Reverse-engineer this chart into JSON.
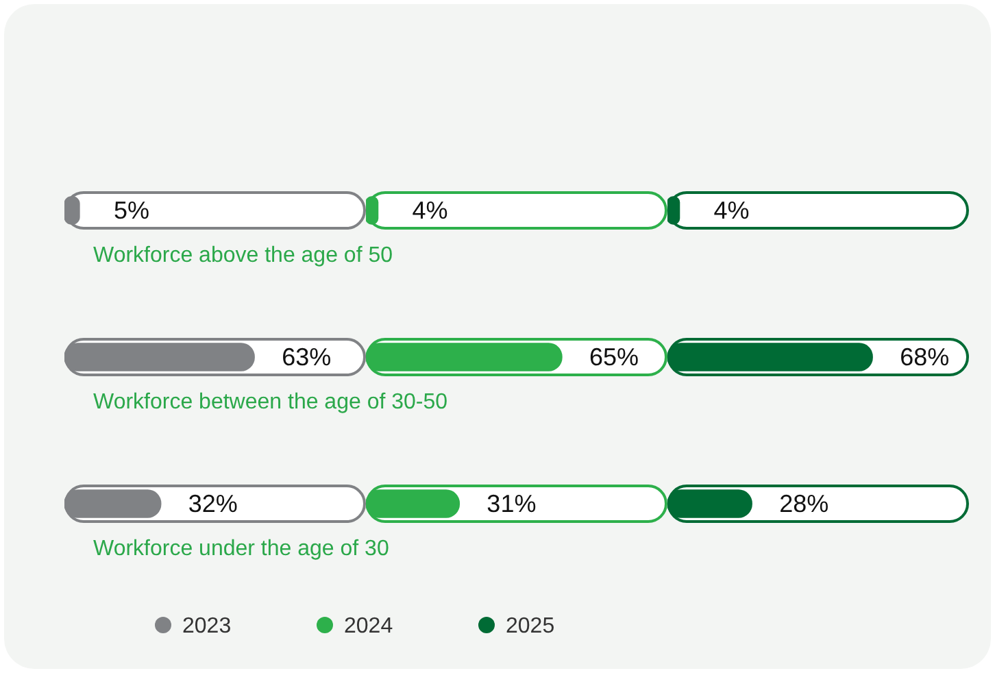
{
  "chart_data": [
    {
      "type": "bar",
      "orientation": "horizontal",
      "categories": [
        "Workforce above the age of 50",
        "Workforce between the age of 30-50",
        "Workforce under the age of 30"
      ],
      "series": [
        {
          "name": "2023",
          "color": "#808285",
          "values": [
            5,
            63,
            32
          ],
          "value_labels": [
            "5%",
            "63%",
            "32%"
          ]
        }
      ],
      "xlim": [
        0,
        100
      ],
      "tick_labels": "y",
      "legend": "bottom",
      "grid": false
    },
    {
      "type": "bar",
      "orientation": "horizontal",
      "categories": [
        null,
        null,
        null
      ],
      "series": [
        {
          "name": "2024",
          "color": "#2db04b",
          "values": [
            4,
            65,
            31
          ],
          "value_labels": [
            "4%",
            "65%",
            "31%"
          ]
        }
      ],
      "xlim": [
        0,
        100
      ],
      "tick_labels": false,
      "legend": "bottom",
      "grid": false
    },
    {
      "type": "bar",
      "orientation": "horizontal",
      "categories": [
        null,
        null,
        null
      ],
      "series": [
        {
          "name": "2025",
          "color": "#006b35",
          "values": [
            4,
            68,
            28
          ],
          "value_labels": [
            "4%",
            "68%",
            "28%"
          ]
        }
      ],
      "xlim": [
        0,
        100
      ],
      "tick_labels": false,
      "legend": "bottom",
      "grid": false
    }
  ]
}
